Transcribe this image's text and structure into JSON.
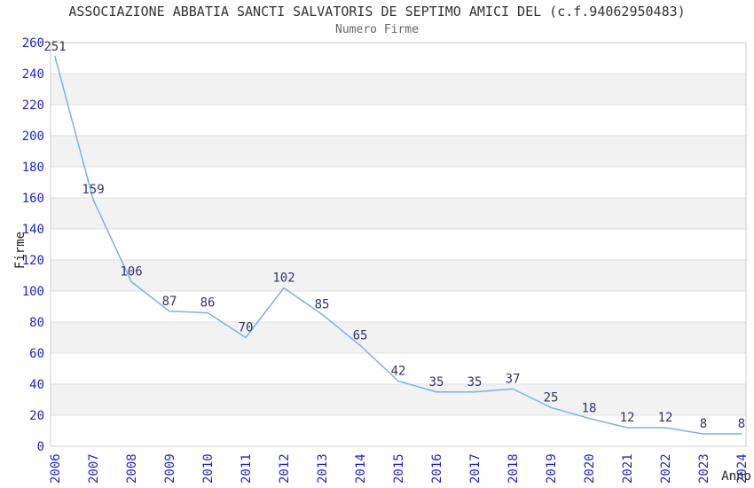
{
  "chart_data": {
    "type": "line",
    "title": "ASSOCIAZIONE ABBATIA SANCTI SALVATORIS DE SEPTIMO AMICI DEL (c.f.94062950483)",
    "subtitle": "Numero Firme",
    "xlabel": "Anno",
    "ylabel": "Firme",
    "categories": [
      "2006",
      "2007",
      "2008",
      "2009",
      "2010",
      "2011",
      "2012",
      "2013",
      "2014",
      "2015",
      "2016",
      "2017",
      "2018",
      "2019",
      "2020",
      "2021",
      "2022",
      "2023",
      "2024"
    ],
    "values": [
      251,
      159,
      106,
      87,
      86,
      70,
      102,
      85,
      65,
      42,
      35,
      35,
      37,
      25,
      18,
      12,
      12,
      8,
      8
    ],
    "ylim": [
      0,
      260
    ],
    "ytick_step": 20,
    "grid": true,
    "legend_position": "none",
    "band_style": "alternating-horizontal",
    "colors": {
      "background": "#ffffff",
      "band": "#f2f2f2",
      "gridline": "#e0e0e0",
      "border": "#cccccc",
      "line": "#7eb1e3",
      "tick_label": "#2222cc",
      "point_label": "#333366",
      "title": "#333333",
      "subtitle": "#666666",
      "axis_label": "#222222"
    }
  }
}
